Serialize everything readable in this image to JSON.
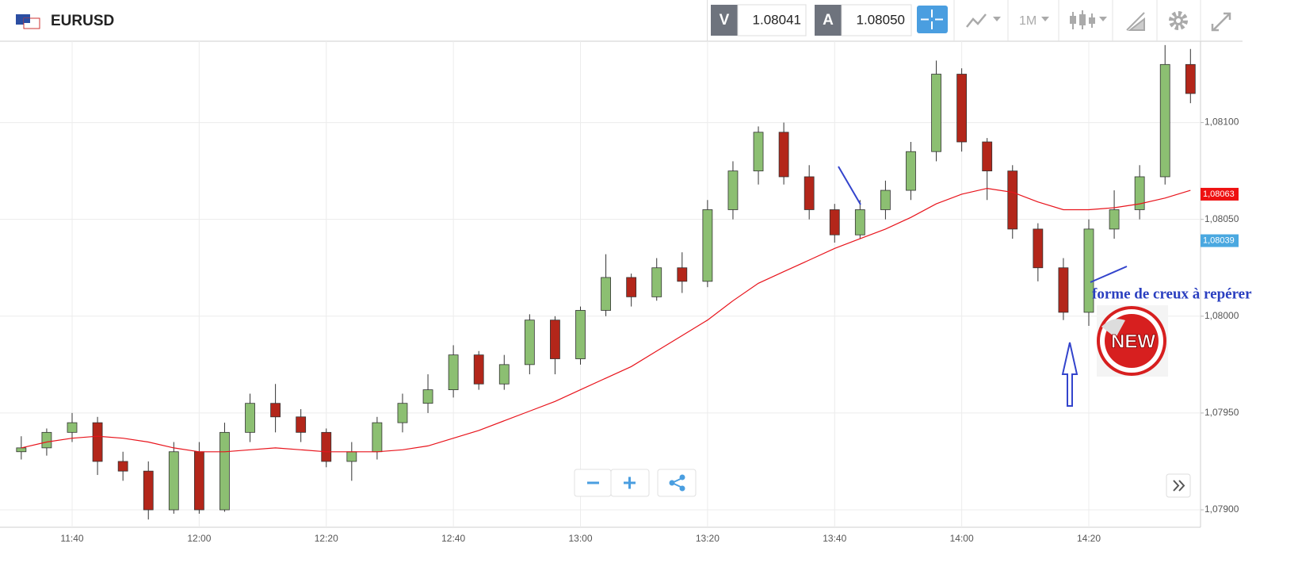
{
  "toolbar": {
    "symbol": "EURUSD",
    "bid_label": "V",
    "bid": "1.08041",
    "ask_label": "A",
    "ask": "1.08050",
    "timeframe": "1M"
  },
  "chart_data": {
    "type": "candlestick",
    "categories": [
      null,
      null,
      "11:40",
      null,
      null,
      null,
      null,
      "12:00",
      null,
      null,
      null,
      null,
      "12:20",
      null,
      null,
      null,
      null,
      "12:40",
      null,
      null,
      null,
      null,
      "13:00",
      null,
      null,
      null,
      null,
      "13:20",
      null,
      null,
      null,
      null,
      "13:40",
      null,
      null,
      null,
      null,
      "14:00",
      null,
      null,
      null,
      null,
      "14:20",
      null,
      null,
      null,
      null
    ],
    "open": [
      1.0793,
      1.07932,
      1.0794,
      1.07945,
      1.07925,
      1.0792,
      1.079,
      1.0793,
      1.079,
      1.0794,
      1.07955,
      1.07948,
      1.0794,
      1.07925,
      1.0793,
      1.07945,
      1.07955,
      1.07962,
      1.0798,
      1.07965,
      1.07975,
      1.07998,
      1.07978,
      1.08003,
      1.0802,
      1.0801,
      1.08025,
      1.08018,
      1.08055,
      1.08075,
      1.08095,
      1.08072,
      1.08055,
      1.08042,
      1.08055,
      1.08065,
      1.08085,
      1.08125,
      1.0809,
      1.08075,
      1.08045,
      1.08025,
      1.08002,
      1.08045,
      1.08055,
      1.08072,
      1.0813
    ],
    "high": [
      1.07938,
      1.07942,
      1.0795,
      1.07948,
      1.0793,
      1.07925,
      1.07935,
      1.07935,
      1.07945,
      1.0796,
      1.07965,
      1.07952,
      1.07942,
      1.07935,
      1.07948,
      1.0796,
      1.0797,
      1.07985,
      1.07982,
      1.0798,
      1.08001,
      1.08,
      1.08005,
      1.08032,
      1.08022,
      1.0803,
      1.08033,
      1.0806,
      1.0808,
      1.08098,
      1.081,
      1.08078,
      1.08058,
      1.0806,
      1.0807,
      1.0809,
      1.08132,
      1.08128,
      1.08092,
      1.08078,
      1.08048,
      1.0803,
      1.0805,
      1.08065,
      1.08078,
      1.0814,
      1.08138
    ],
    "low": [
      1.07926,
      1.07928,
      1.07935,
      1.07918,
      1.07915,
      1.07895,
      1.07898,
      1.07898,
      1.07899,
      1.07935,
      1.0794,
      1.07935,
      1.07922,
      1.07915,
      1.07926,
      1.0794,
      1.0795,
      1.07958,
      1.07962,
      1.07962,
      1.0797,
      1.0797,
      1.07975,
      1.08,
      1.08005,
      1.08008,
      1.08012,
      1.08015,
      1.0805,
      1.08068,
      1.08068,
      1.0805,
      1.08038,
      1.0804,
      1.0805,
      1.0806,
      1.0808,
      1.08085,
      1.0806,
      1.0804,
      1.08018,
      1.07998,
      1.07995,
      1.0804,
      1.0805,
      1.08068,
      1.0811
    ],
    "close": [
      1.07932,
      1.0794,
      1.07945,
      1.07925,
      1.0792,
      1.079,
      1.0793,
      1.079,
      1.0794,
      1.07955,
      1.07948,
      1.0794,
      1.07925,
      1.0793,
      1.07945,
      1.07955,
      1.07962,
      1.0798,
      1.07965,
      1.07975,
      1.07998,
      1.07978,
      1.08003,
      1.0802,
      1.0801,
      1.08025,
      1.08018,
      1.08055,
      1.08075,
      1.08095,
      1.08072,
      1.08055,
      1.08042,
      1.08055,
      1.08065,
      1.08085,
      1.08125,
      1.0809,
      1.08075,
      1.08045,
      1.08025,
      1.08002,
      1.08045,
      1.08055,
      1.08072,
      1.0813,
      1.08115
    ],
    "up_color": "#8cbf72",
    "down_color": "#b3261a",
    "moving_average": {
      "color": "#e8141c",
      "values": [
        1.07932,
        1.07935,
        1.07937,
        1.07938,
        1.07937,
        1.07935,
        1.07932,
        1.0793,
        1.0793,
        1.07931,
        1.07932,
        1.07931,
        1.0793,
        1.0793,
        1.0793,
        1.07931,
        1.07933,
        1.07937,
        1.07941,
        1.07946,
        1.07951,
        1.07956,
        1.07962,
        1.07968,
        1.07974,
        1.07982,
        1.0799,
        1.07998,
        1.08008,
        1.08017,
        1.08023,
        1.08029,
        1.08035,
        1.0804,
        1.08045,
        1.08051,
        1.08058,
        1.08063,
        1.08066,
        1.08064,
        1.08059,
        1.08055,
        1.08055,
        1.08056,
        1.08058,
        1.08061,
        1.08065
      ]
    },
    "ylim": [
      1.07891,
      1.08142
    ],
    "yticks": [
      {
        "value": 1.079,
        "label": "1,07900"
      },
      {
        "value": 1.0795,
        "label": "1,07950"
      },
      {
        "value": 1.08,
        "label": "1,08000"
      },
      {
        "value": 1.0805,
        "label": "1,08050"
      },
      {
        "value": 1.081,
        "label": "1,08100"
      }
    ],
    "price_tags": [
      {
        "value": 1.08063,
        "label": "1,08063",
        "color": "#ee1111"
      },
      {
        "value": 1.08039,
        "label": "1,08039",
        "color": "#4aa8e0"
      }
    ],
    "grid": true,
    "annotation": "forme de creux à repérer",
    "badge": "NEW"
  }
}
